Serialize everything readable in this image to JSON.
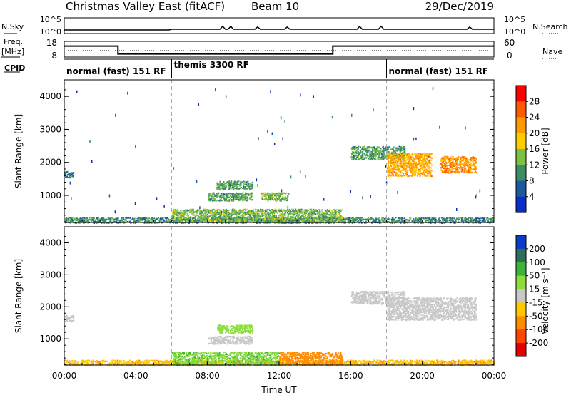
{
  "header": {
    "station": "Christmas Valley East (fitACF)",
    "beam": "Beam 10",
    "date": "29/Dec/2019"
  },
  "noise_panel": {
    "left_label": "N.Sky",
    "right_label": "N.Search",
    "left_ticks": [
      "10^5",
      "10^0"
    ],
    "right_ticks": [
      "10^5",
      "10^0"
    ]
  },
  "freq_panel": {
    "left_label_line1": "Freq.",
    "left_label_line2": "[MHz]",
    "left_ticks": [
      "18",
      "8"
    ],
    "right_ticks": [
      "60",
      "0"
    ],
    "right_label": "Nave"
  },
  "cpid_panel": {
    "label": "CPID",
    "segments": [
      {
        "name": "normal (fast) 151 RF",
        "start_hour": 0,
        "end_hour": 6
      },
      {
        "name": "themis 3300 RF",
        "start_hour": 6,
        "end_hour": 18
      },
      {
        "name": "normal (fast) 151 RF",
        "start_hour": 18,
        "end_hour": 24
      }
    ]
  },
  "power_panel": {
    "ylabel": "Slant Range [km]",
    "yticks": [
      "4000",
      "3000",
      "2000",
      "1000"
    ],
    "colorbar_label": "Power [dB]",
    "colorbar_ticks": [
      "28",
      "24",
      "20",
      "16",
      "12",
      "8",
      "4"
    ],
    "colors": [
      "#ff0000",
      "#ff5a00",
      "#ff9a00",
      "#ffcc00",
      "#7cc242",
      "#3c8c64",
      "#1c5aa0",
      "#0a2cc8"
    ]
  },
  "velocity_panel": {
    "ylabel": "Slant Range [km]",
    "yticks": [
      "4000",
      "3000",
      "2000",
      "1000"
    ],
    "colorbar_label": "Velocity [m s⁻¹]",
    "colorbar_ticks": [
      "200",
      "100",
      "50",
      "15",
      "-15",
      "-50",
      "-100",
      "-200"
    ],
    "colors": [
      "#0a3cc8",
      "#2f6f5a",
      "#3cb43c",
      "#8cdc3c",
      "#c8c8c8",
      "#ffc800",
      "#ff8c00",
      "#ff4600",
      "#e60000"
    ]
  },
  "xaxis": {
    "label": "Time UT",
    "ticks": [
      "00:00",
      "04:00",
      "08:00",
      "12:00",
      "16:00",
      "20:00",
      "00:00"
    ]
  },
  "chart_data": [
    {
      "type": "line",
      "title": "",
      "xlabel": "Time UT",
      "ylabel": "Freq. [MHz]",
      "xlim": [
        0,
        24
      ],
      "ylim": [
        8,
        18
      ],
      "series": [
        {
          "name": "",
          "x": [
            0,
            3,
            3,
            15,
            15,
            24
          ],
          "values": [
            15,
            15,
            10,
            10,
            15,
            15
          ]
        }
      ]
    },
    {
      "type": "heatmap",
      "title": "",
      "xlabel": "Time UT",
      "ylabel": "Slant Range [km]",
      "colorbar_label": "Power [dB]",
      "xlim": [
        0,
        24
      ],
      "ylim": [
        180,
        4500
      ],
      "clim": [
        0,
        30
      ],
      "regions": [
        {
          "t_start": 0.0,
          "t_end": 0.5,
          "range_start": 1550,
          "range_end": 1750,
          "power_db": 6
        },
        {
          "t_start": 0.0,
          "t_end": 24.0,
          "range_start": 180,
          "range_end": 350,
          "power_db": 8
        },
        {
          "t_start": 6.0,
          "t_end": 15.5,
          "range_start": 200,
          "range_end": 600,
          "power_db": 12
        },
        {
          "t_start": 8.5,
          "t_end": 10.5,
          "range_start": 1200,
          "range_end": 1450,
          "power_db": 10
        },
        {
          "t_start": 8.0,
          "t_end": 10.5,
          "range_start": 850,
          "range_end": 1100,
          "power_db": 10
        },
        {
          "t_start": 11.0,
          "t_end": 12.5,
          "range_start": 850,
          "range_end": 1100,
          "power_db": 12
        },
        {
          "t_start": 16.0,
          "t_end": 19.0,
          "range_start": 2100,
          "range_end": 2500,
          "power_db": 10
        },
        {
          "t_start": 18.0,
          "t_end": 20.5,
          "range_start": 1600,
          "range_end": 2300,
          "power_db": 20
        },
        {
          "t_start": 21.0,
          "t_end": 23.0,
          "range_start": 1700,
          "range_end": 2200,
          "power_db": 22
        }
      ]
    },
    {
      "type": "heatmap",
      "title": "",
      "xlabel": "Time UT",
      "ylabel": "Slant Range [km]",
      "colorbar_label": "Velocity [m s⁻¹]",
      "xlim": [
        0,
        24
      ],
      "ylim": [
        180,
        4500
      ],
      "clim": [
        -200,
        200
      ],
      "regions": [
        {
          "t_start": 0.0,
          "t_end": 0.5,
          "range_start": 1550,
          "range_end": 1750,
          "velocity": 0
        },
        {
          "t_start": 0.0,
          "t_end": 24.0,
          "range_start": 180,
          "range_end": 350,
          "velocity": -30
        },
        {
          "t_start": 6.0,
          "t_end": 12.0,
          "range_start": 200,
          "range_end": 600,
          "velocity": 30
        },
        {
          "t_start": 12.0,
          "t_end": 15.5,
          "range_start": 200,
          "range_end": 600,
          "velocity": -40
        },
        {
          "t_start": 8.5,
          "t_end": 10.5,
          "range_start": 1200,
          "range_end": 1450,
          "velocity": 20
        },
        {
          "t_start": 8.0,
          "t_end": 10.5,
          "range_start": 850,
          "range_end": 1100,
          "velocity": 0
        },
        {
          "t_start": 16.0,
          "t_end": 19.0,
          "range_start": 2100,
          "range_end": 2500,
          "velocity": 0
        },
        {
          "t_start": 18.0,
          "t_end": 23.0,
          "range_start": 1600,
          "range_end": 2300,
          "velocity": 0
        }
      ]
    }
  ]
}
